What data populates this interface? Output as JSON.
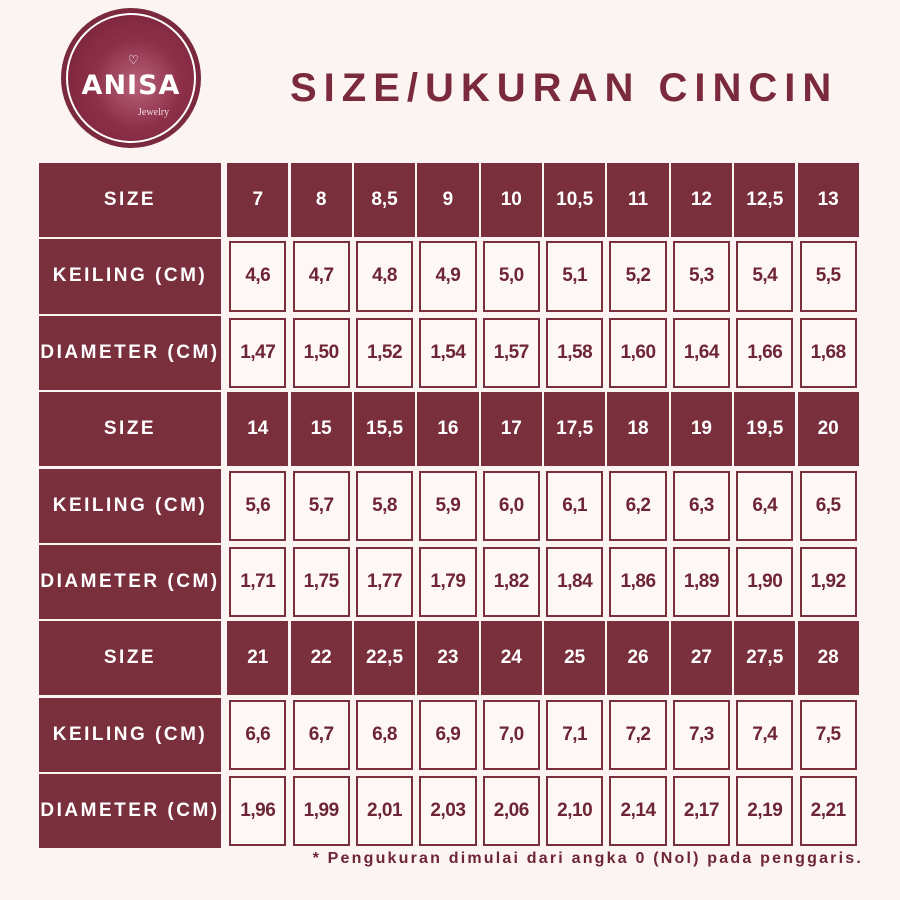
{
  "logo": {
    "brand": "ANISA",
    "sub": "Jewelry"
  },
  "title": "SIZE/UKURAN CINCIN",
  "labels": {
    "size": "SIZE",
    "keiling": "KEILING (CM)",
    "diameter": "DIAMETER (CM)"
  },
  "blocks": [
    {
      "size": [
        "7",
        "8",
        "8,5",
        "9",
        "10",
        "10,5",
        "11",
        "12",
        "12,5",
        "13"
      ],
      "keiling": [
        "4,6",
        "4,7",
        "4,8",
        "4,9",
        "5,0",
        "5,1",
        "5,2",
        "5,3",
        "5,4",
        "5,5"
      ],
      "diameter": [
        "1,47",
        "1,50",
        "1,52",
        "1,54",
        "1,57",
        "1,58",
        "1,60",
        "1,64",
        "1,66",
        "1,68"
      ]
    },
    {
      "size": [
        "14",
        "15",
        "15,5",
        "16",
        "17",
        "17,5",
        "18",
        "19",
        "19,5",
        "20"
      ],
      "keiling": [
        "5,6",
        "5,7",
        "5,8",
        "5,9",
        "6,0",
        "6,1",
        "6,2",
        "6,3",
        "6,4",
        "6,5"
      ],
      "diameter": [
        "1,71",
        "1,75",
        "1,77",
        "1,79",
        "1,82",
        "1,84",
        "1,86",
        "1,89",
        "1,90",
        "1,92"
      ]
    },
    {
      "size": [
        "21",
        "22",
        "22,5",
        "23",
        "24",
        "25",
        "26",
        "27",
        "27,5",
        "28"
      ],
      "keiling": [
        "6,6",
        "6,7",
        "6,8",
        "6,9",
        "7,0",
        "7,1",
        "7,2",
        "7,3",
        "7,4",
        "7,5"
      ],
      "diameter": [
        "1,96",
        "1,99",
        "2,01",
        "2,03",
        "2,06",
        "2,10",
        "2,14",
        "2,17",
        "2,19",
        "2,21"
      ]
    }
  ],
  "footnote": "* Pengukuran dimulai dari angka 0 (Nol) pada penggaris.",
  "colors": {
    "maroon": "#7a2f3d",
    "background": "#fcf4f2"
  }
}
